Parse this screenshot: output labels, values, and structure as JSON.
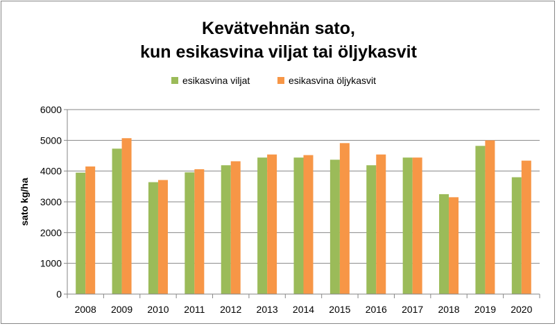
{
  "chart_data": {
    "type": "bar",
    "title_lines": [
      "Kevätvehnän sato,",
      "kun esikasvina viljat tai öljykasvit"
    ],
    "xlabel": "",
    "ylabel": "sato kg/ha",
    "ylim": [
      0,
      6000
    ],
    "ytick_step": 1000,
    "grid": true,
    "legend_position": "top-center",
    "categories": [
      "2008",
      "2009",
      "2010",
      "2011",
      "2012",
      "2013",
      "2014",
      "2015",
      "2016",
      "2017",
      "2018",
      "2019",
      "2020"
    ],
    "series": [
      {
        "name": "esikasvina viljat",
        "color": "#9bbb59",
        "values": [
          3950,
          4730,
          3640,
          3960,
          4190,
          4440,
          4440,
          4370,
          4190,
          4440,
          3250,
          4820,
          3800
        ]
      },
      {
        "name": "esikasvina öljykasvit",
        "color": "#f79646",
        "values": [
          4150,
          5070,
          3710,
          4060,
          4320,
          4540,
          4520,
          4910,
          4540,
          4440,
          3150,
          5000,
          4340
        ]
      }
    ]
  },
  "colors": {
    "grid": "#868686",
    "axis": "#868686",
    "frame": "#868686"
  }
}
